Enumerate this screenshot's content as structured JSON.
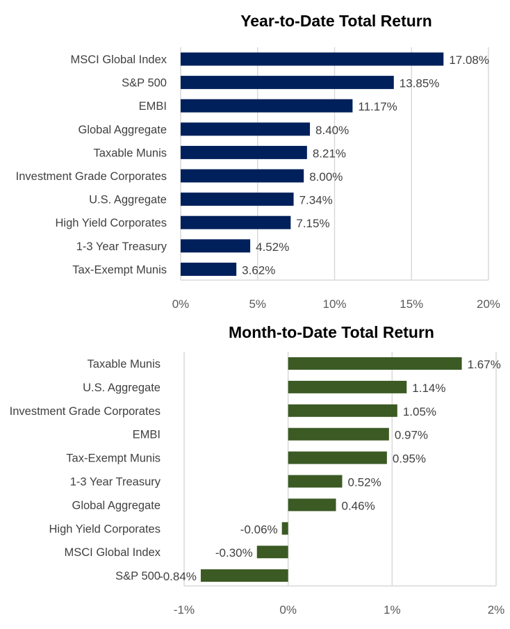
{
  "chart_data": [
    {
      "type": "bar",
      "orientation": "horizontal",
      "title": "Year-to-Date Total Return",
      "categories": [
        "MSCI Global Index",
        "S&P 500",
        "EMBI",
        "Global Aggregate",
        "Taxable Munis",
        "Investment Grade Corporates",
        "U.S. Aggregate",
        "High Yield Corporates",
        "1-3 Year Treasury",
        "Tax-Exempt Munis"
      ],
      "values": [
        17.08,
        13.85,
        11.17,
        8.4,
        8.21,
        8.0,
        7.34,
        7.15,
        4.52,
        3.62
      ],
      "data_labels": [
        "17.08%",
        "13.85%",
        "11.17%",
        "8.40%",
        "8.21%",
        "8.00%",
        "7.34%",
        "7.15%",
        "4.52%",
        "3.62%"
      ],
      "xlim": [
        0,
        20
      ],
      "ticks": [
        0,
        5,
        10,
        15,
        20
      ],
      "tick_labels": [
        "0%",
        "5%",
        "10%",
        "15%",
        "20%"
      ],
      "grid": true,
      "color": "#00205b"
    },
    {
      "type": "bar",
      "orientation": "horizontal",
      "title": "Month-to-Date Total Return",
      "categories": [
        "Taxable Munis",
        "U.S. Aggregate",
        "Investment Grade Corporates",
        "EMBI",
        "Tax-Exempt Munis",
        "1-3 Year Treasury",
        "Global Aggregate",
        "High Yield Corporates",
        "MSCI Global Index",
        "S&P 500"
      ],
      "values": [
        1.67,
        1.14,
        1.05,
        0.97,
        0.95,
        0.52,
        0.46,
        -0.06,
        -0.3,
        -0.84
      ],
      "data_labels": [
        "1.67%",
        "1.14%",
        "1.05%",
        "0.97%",
        "0.95%",
        "0.52%",
        "0.46%",
        "-0.06%",
        "-0.30%",
        "-0.84%"
      ],
      "xlim": [
        -1,
        2
      ],
      "ticks": [
        -1,
        0,
        1,
        2
      ],
      "tick_labels": [
        "-1%",
        "0%",
        "1%",
        "2%"
      ],
      "grid": true,
      "color": "#3b5a24"
    }
  ]
}
